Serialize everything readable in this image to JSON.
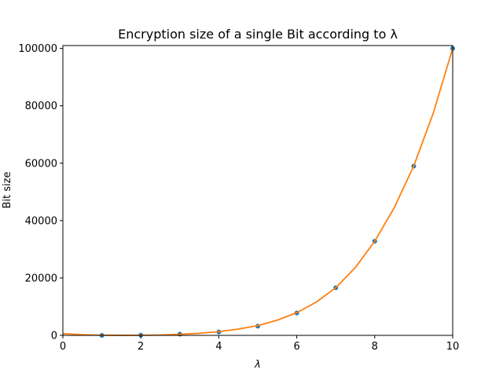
{
  "chart_data": {
    "type": "scatter",
    "title": "Encryption size of a single Bit according to λ",
    "xlabel": "λ",
    "ylabel": "Bit size",
    "xlim": [
      0,
      10
    ],
    "ylim": [
      0,
      101000
    ],
    "xticks": [
      0,
      2,
      4,
      6,
      8,
      10
    ],
    "yticks": [
      0,
      20000,
      40000,
      60000,
      80000,
      100000
    ],
    "xtick_labels": [
      "0",
      "2",
      "4",
      "6",
      "8",
      "10"
    ],
    "ytick_labels": [
      "0",
      "20000",
      "40000",
      "60000",
      "80000",
      "100000"
    ],
    "grid": false,
    "series": [
      {
        "kind": "points",
        "color": "#1f77b4",
        "x": [
          1,
          2,
          3,
          4,
          5,
          6,
          7,
          8,
          9,
          10
        ],
        "y": [
          10,
          60,
          400,
          1200,
          3200,
          7800,
          16600,
          32800,
          59000,
          100000
        ]
      },
      {
        "kind": "fit-curve",
        "color": "#ff7f0e",
        "x": [
          0,
          0.5,
          1,
          1.5,
          2,
          2.5,
          3,
          3.5,
          4,
          4.5,
          5,
          5.5,
          6,
          6.5,
          7,
          7.5,
          8,
          8.5,
          9,
          9.5,
          10
        ],
        "y": [
          600,
          250,
          60,
          10,
          40,
          130,
          360,
          700,
          1300,
          2200,
          3400,
          5300,
          7900,
          11600,
          16600,
          23600,
          32800,
          44500,
          59000,
          77400,
          100000
        ]
      }
    ]
  }
}
